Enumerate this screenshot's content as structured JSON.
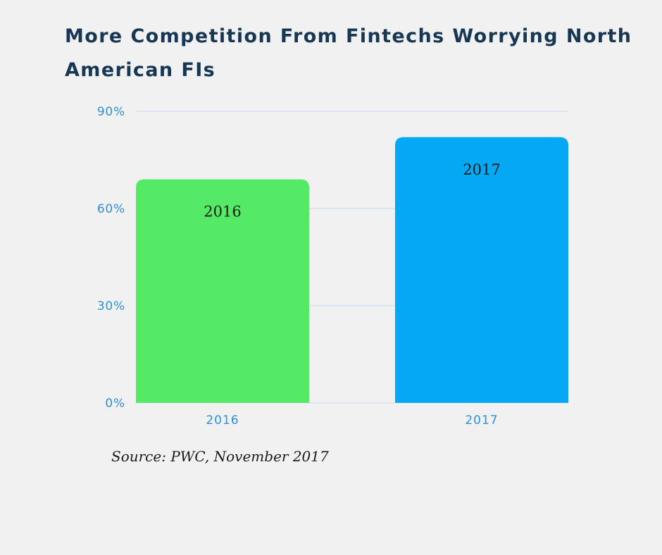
{
  "chart_data": {
    "type": "bar",
    "title": "More Competition From Fintechs Worrying North American FIs",
    "categories": [
      "2016",
      "2017"
    ],
    "values": [
      69,
      82
    ],
    "bar_labels": [
      "2016",
      "2017"
    ],
    "colors": [
      "#54ea66",
      "#05a8f5"
    ],
    "ylim": [
      0,
      90
    ],
    "yticks": [
      0,
      30,
      60,
      90
    ],
    "ytick_labels": [
      "0%",
      "30%",
      "60%",
      "90%"
    ],
    "xlabel": "",
    "ylabel": "",
    "grid": true,
    "gridline_color": "#c9dcee",
    "tick_color": "#2f8fd8"
  },
  "source": "Source: PWC, November 2017"
}
